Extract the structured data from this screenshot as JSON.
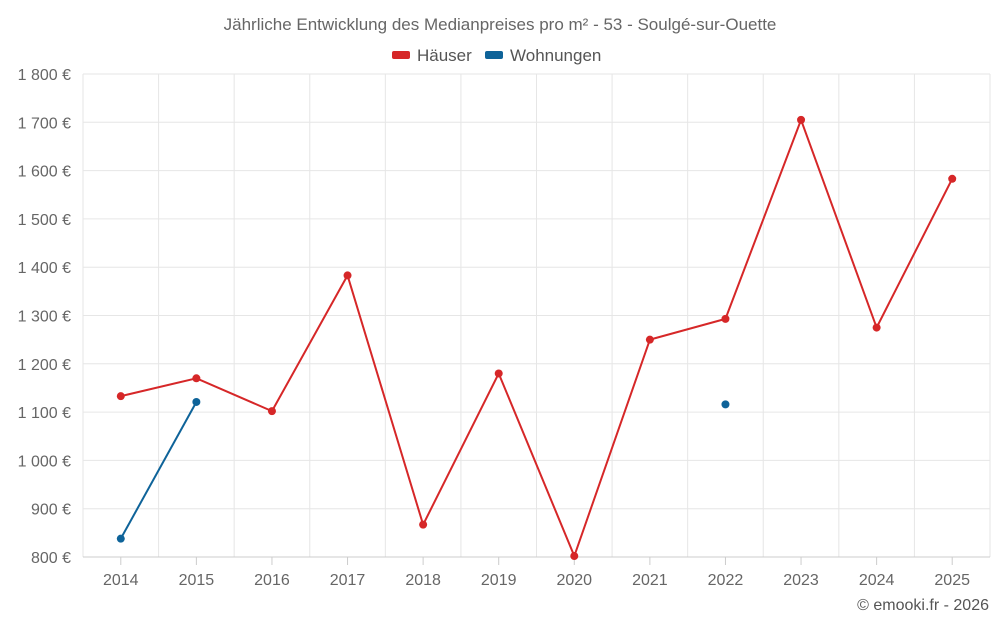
{
  "chart_data": {
    "type": "line",
    "title": "Jährliche Entwicklung des Medianpreises pro m² - 53 - Soulgé-sur-Ouette",
    "categories": [
      "2014",
      "2015",
      "2016",
      "2017",
      "2018",
      "2019",
      "2020",
      "2021",
      "2022",
      "2023",
      "2024",
      "2025"
    ],
    "ylim": [
      800,
      1800
    ],
    "yticks": [
      800,
      900,
      1000,
      1100,
      1200,
      1300,
      1400,
      1500,
      1600,
      1700,
      1800
    ],
    "ytick_labels": [
      "800 €",
      "900 €",
      "1 000 €",
      "1 100 €",
      "1 200 €",
      "1 300 €",
      "1 400 €",
      "1 500 €",
      "1 600 €",
      "1 700 €",
      "1 800 €"
    ],
    "grid": true,
    "legend_position": "top-center",
    "series": [
      {
        "name": "Häuser",
        "color": "#d62728",
        "values": [
          1133,
          1170,
          1102,
          1383,
          867,
          1180,
          802,
          1250,
          1293,
          1705,
          1275,
          1583
        ]
      },
      {
        "name": "Wohnungen",
        "color": "#0e6399",
        "values": [
          838,
          1121,
          null,
          null,
          null,
          null,
          null,
          null,
          1116,
          null,
          null,
          null
        ]
      }
    ],
    "credit": "© emooki.fr - 2026"
  }
}
